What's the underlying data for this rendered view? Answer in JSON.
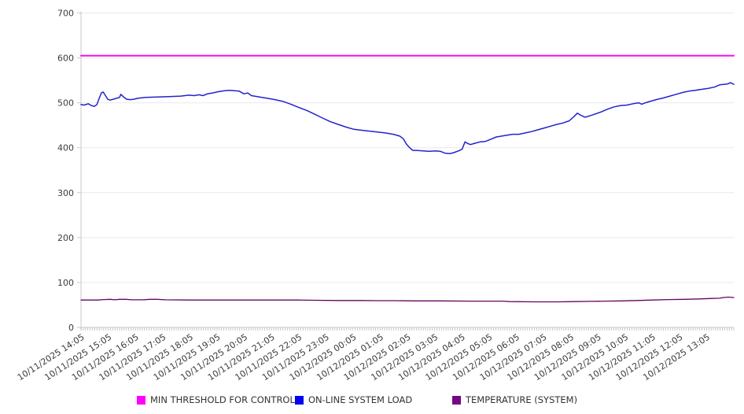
{
  "chart_data": {
    "type": "line",
    "title": "",
    "background": "#ffffff",
    "grid": true,
    "legend_position": "bottom",
    "x_axis": {
      "range_minutes": [
        0,
        1440
      ],
      "minor_tick_interval_minutes": 5,
      "major_tick_interval_minutes": 60,
      "tick_labels": [
        "10/11/2025 14:05",
        "10/11/2025 15:05",
        "10/11/2025 16:05",
        "10/11/2025 17:05",
        "10/11/2025 18:05",
        "10/11/2025 19:05",
        "10/11/2025 20:05",
        "10/11/2025 21:05",
        "10/11/2025 22:05",
        "10/11/2025 23:05",
        "10/12/2025 00:05",
        "10/12/2025 01:05",
        "10/12/2025 02:05",
        "10/12/2025 03:05",
        "10/12/2025 04:05",
        "10/12/2025 05:05",
        "10/12/2025 06:05",
        "10/12/2025 07:05",
        "10/12/2025 08:05",
        "10/12/2025 09:05",
        "10/12/2025 10:05",
        "10/12/2025 11:05",
        "10/12/2025 12:05",
        "10/12/2025 13:05"
      ]
    },
    "y_axis": {
      "range": [
        0,
        700
      ],
      "ticks": [
        0,
        100,
        200,
        300,
        400,
        500,
        600,
        700
      ]
    },
    "series": [
      {
        "name": "MIN THRESHOLD FOR CONTROL",
        "type": "threshold",
        "value": 605,
        "color": "#f50df0",
        "swatch_color": "#ff00ff",
        "width": 2
      },
      {
        "name": "ON-LINE SYSTEM LOAD",
        "type": "line",
        "color": "#2323cd",
        "swatch_color": "#0404f0",
        "width": 1.5,
        "points": [
          [
            0,
            496
          ],
          [
            7,
            495
          ],
          [
            16,
            498
          ],
          [
            23,
            494
          ],
          [
            29,
            492
          ],
          [
            35,
            496
          ],
          [
            40,
            510
          ],
          [
            45,
            522
          ],
          [
            49,
            524
          ],
          [
            54,
            516
          ],
          [
            59,
            508
          ],
          [
            64,
            506
          ],
          [
            71,
            508
          ],
          [
            78,
            510
          ],
          [
            85,
            512
          ],
          [
            88,
            519
          ],
          [
            95,
            512
          ],
          [
            101,
            508
          ],
          [
            108,
            507
          ],
          [
            116,
            508
          ],
          [
            125,
            510
          ],
          [
            142,
            512
          ],
          [
            168,
            513
          ],
          [
            194,
            514
          ],
          [
            220,
            515
          ],
          [
            238,
            517
          ],
          [
            250,
            516
          ],
          [
            260,
            518
          ],
          [
            269,
            516
          ],
          [
            279,
            520
          ],
          [
            290,
            522
          ],
          [
            304,
            525
          ],
          [
            317,
            527
          ],
          [
            328,
            528
          ],
          [
            338,
            527
          ],
          [
            349,
            526
          ],
          [
            359,
            520
          ],
          [
            368,
            522
          ],
          [
            376,
            516
          ],
          [
            394,
            513
          ],
          [
            411,
            510
          ],
          [
            428,
            507
          ],
          [
            446,
            503
          ],
          [
            463,
            497
          ],
          [
            480,
            490
          ],
          [
            498,
            483
          ],
          [
            515,
            475
          ],
          [
            533,
            466
          ],
          [
            550,
            458
          ],
          [
            567,
            452
          ],
          [
            585,
            446
          ],
          [
            602,
            441
          ],
          [
            619,
            439
          ],
          [
            637,
            437
          ],
          [
            654,
            435
          ],
          [
            671,
            433
          ],
          [
            689,
            430
          ],
          [
            703,
            426
          ],
          [
            711,
            420
          ],
          [
            718,
            408
          ],
          [
            725,
            400
          ],
          [
            732,
            394
          ],
          [
            741,
            394
          ],
          [
            755,
            393
          ],
          [
            768,
            392
          ],
          [
            782,
            393
          ],
          [
            793,
            392
          ],
          [
            803,
            388
          ],
          [
            814,
            387
          ],
          [
            822,
            389
          ],
          [
            833,
            393
          ],
          [
            841,
            397
          ],
          [
            847,
            413
          ],
          [
            852,
            410
          ],
          [
            859,
            407
          ],
          [
            869,
            410
          ],
          [
            880,
            413
          ],
          [
            892,
            414
          ],
          [
            904,
            419
          ],
          [
            916,
            424
          ],
          [
            928,
            426
          ],
          [
            940,
            428
          ],
          [
            952,
            430
          ],
          [
            966,
            430
          ],
          [
            980,
            433
          ],
          [
            994,
            436
          ],
          [
            1008,
            440
          ],
          [
            1022,
            444
          ],
          [
            1036,
            448
          ],
          [
            1050,
            452
          ],
          [
            1063,
            455
          ],
          [
            1077,
            460
          ],
          [
            1088,
            470
          ],
          [
            1095,
            477
          ],
          [
            1103,
            472
          ],
          [
            1112,
            468
          ],
          [
            1122,
            471
          ],
          [
            1134,
            475
          ],
          [
            1148,
            480
          ],
          [
            1162,
            486
          ],
          [
            1176,
            491
          ],
          [
            1190,
            494
          ],
          [
            1204,
            495
          ],
          [
            1218,
            498
          ],
          [
            1230,
            500
          ],
          [
            1237,
            497
          ],
          [
            1245,
            500
          ],
          [
            1258,
            504
          ],
          [
            1272,
            508
          ],
          [
            1285,
            511
          ],
          [
            1299,
            515
          ],
          [
            1313,
            519
          ],
          [
            1327,
            523
          ],
          [
            1341,
            526
          ],
          [
            1355,
            528
          ],
          [
            1369,
            530
          ],
          [
            1383,
            532
          ],
          [
            1397,
            535
          ],
          [
            1409,
            540
          ],
          [
            1417,
            541
          ],
          [
            1426,
            542
          ],
          [
            1433,
            545
          ],
          [
            1440,
            541
          ]
        ]
      },
      {
        "name": "TEMPERATURE (SYSTEM)",
        "type": "line",
        "color": "#620462",
        "swatch_color": "#750787",
        "width": 1.3,
        "points": [
          [
            0,
            61
          ],
          [
            38,
            61
          ],
          [
            50,
            62
          ],
          [
            64,
            62.5
          ],
          [
            75,
            61.5
          ],
          [
            85,
            62.5
          ],
          [
            99,
            62.5
          ],
          [
            111,
            61.5
          ],
          [
            139,
            61.5
          ],
          [
            151,
            62.5
          ],
          [
            168,
            62.5
          ],
          [
            186,
            61.5
          ],
          [
            238,
            61
          ],
          [
            307,
            61
          ],
          [
            376,
            61
          ],
          [
            446,
            61
          ],
          [
            480,
            61
          ],
          [
            515,
            60.5
          ],
          [
            567,
            60
          ],
          [
            619,
            60
          ],
          [
            649,
            59.5
          ],
          [
            689,
            59.5
          ],
          [
            741,
            59
          ],
          [
            793,
            59
          ],
          [
            862,
            58.5
          ],
          [
            932,
            58.5
          ],
          [
            945,
            57.5
          ],
          [
            1001,
            57
          ],
          [
            1053,
            57
          ],
          [
            1088,
            57.5
          ],
          [
            1122,
            58
          ],
          [
            1157,
            58.5
          ],
          [
            1192,
            59
          ],
          [
            1226,
            60
          ],
          [
            1261,
            61
          ],
          [
            1296,
            62
          ],
          [
            1331,
            62.5
          ],
          [
            1365,
            63.5
          ],
          [
            1391,
            64.5
          ],
          [
            1409,
            65
          ],
          [
            1417,
            66.5
          ],
          [
            1428,
            67.5
          ],
          [
            1440,
            66.5
          ]
        ]
      }
    ],
    "style": {
      "grid_color": "#e9e9e9",
      "axis_color": "#c9c9c9",
      "minor_tick_color": "#b3b3b3",
      "label_color": "#3b3b3b",
      "x_label_rotation_deg": -33
    }
  }
}
